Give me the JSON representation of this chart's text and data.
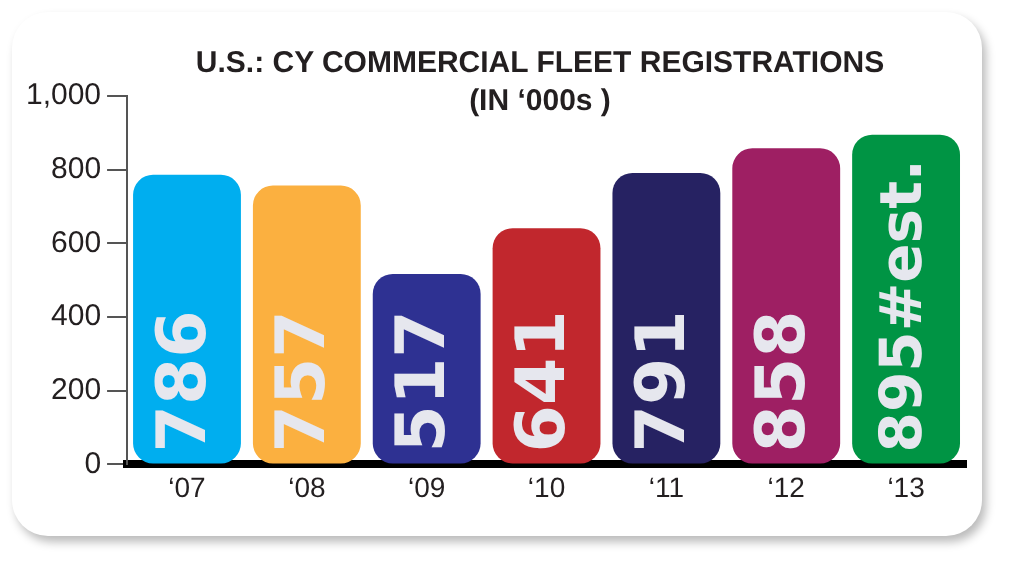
{
  "chart_data": {
    "type": "bar",
    "title": "U.S.: CY COMMERCIAL FLEET REGISTRATIONS",
    "subtitle": "(IN ‘000s )",
    "categories": [
      "‘07",
      "‘08",
      "‘09",
      "‘10",
      "‘11",
      "‘12",
      "‘13"
    ],
    "values": [
      786,
      757,
      517,
      641,
      791,
      858,
      895
    ],
    "value_labels": [
      "786",
      "757",
      "517",
      "641",
      "791",
      "858",
      "895#est."
    ],
    "colors": [
      "#00aeef",
      "#fbb040",
      "#2e3192",
      "#c1272d",
      "#262262",
      "#9e1f63",
      "#009444"
    ],
    "ylim": [
      0,
      1000
    ],
    "yticks": [
      0,
      200,
      400,
      600,
      800,
      {
        "value": 1000,
        "label": "1,000"
      }
    ],
    "grid": false,
    "legend": false
  }
}
